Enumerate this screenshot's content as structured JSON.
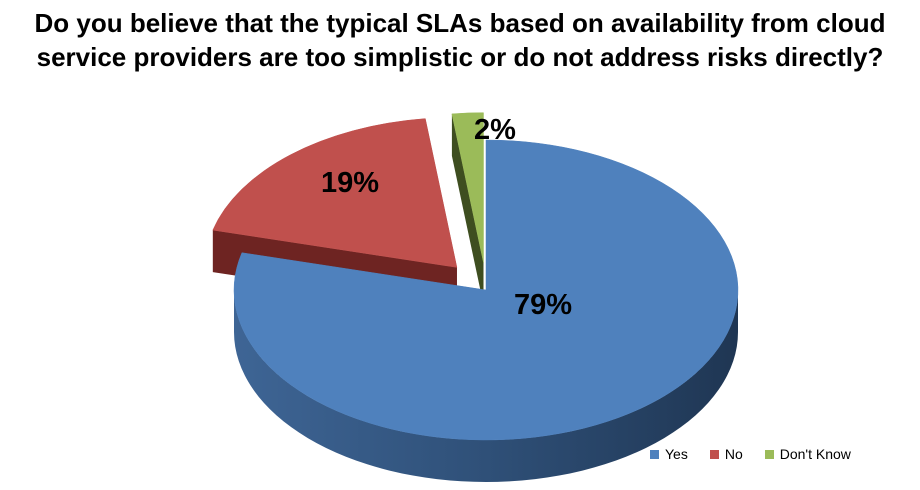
{
  "chart_data": {
    "type": "pie",
    "title_lines": [
      "Do you believe that the typical SLAs based on availability from cloud",
      "service providers are too simplistic or do not address risks directly?"
    ],
    "slices": [
      {
        "name": "Yes",
        "value": 79,
        "label": "79%",
        "color": "#4f81bd",
        "side_color": "#2c4a70"
      },
      {
        "name": "No",
        "value": 19,
        "label": "19%",
        "color": "#c0504d",
        "side_color": "#6e2422"
      },
      {
        "name": "Don't Know",
        "value": 2,
        "label": "2%",
        "color": "#9bbb59",
        "side_color": "#3e4e20"
      }
    ],
    "exploded": true,
    "three_d": true,
    "legend_position": "bottom-right"
  }
}
